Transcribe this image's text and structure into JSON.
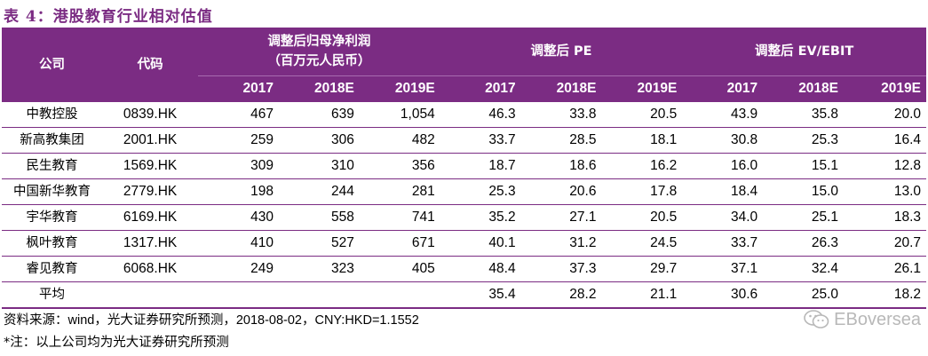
{
  "title": "表 4：港股教育行业相对估值",
  "header": {
    "company": "公司",
    "code": "代码",
    "group1_line1": "调整后归母净利润",
    "group1_line2": "（百万元人民币）",
    "group2": "调整后 PE",
    "group3": "调整后 EV/EBIT",
    "years": [
      "2017",
      "2018E",
      "2019E",
      "2017",
      "2018E",
      "2019E",
      "2017",
      "2018E",
      "2019E"
    ]
  },
  "rows": [
    {
      "name": "中教控股",
      "code": "0839.HK",
      "v": [
        "467",
        "639",
        "1,054",
        "46.3",
        "33.8",
        "20.5",
        "43.9",
        "35.8",
        "20.0"
      ]
    },
    {
      "name": "新高教集团",
      "code": "2001.HK",
      "v": [
        "259",
        "306",
        "482",
        "33.7",
        "28.5",
        "18.1",
        "30.8",
        "25.3",
        "16.4"
      ]
    },
    {
      "name": "民生教育",
      "code": "1569.HK",
      "v": [
        "309",
        "310",
        "356",
        "18.7",
        "18.6",
        "16.2",
        "16.0",
        "15.1",
        "12.8"
      ]
    },
    {
      "name": "中国新华教育",
      "code": "2779.HK",
      "v": [
        "198",
        "244",
        "281",
        "25.3",
        "20.6",
        "17.8",
        "18.4",
        "15.0",
        "13.0"
      ]
    },
    {
      "name": "宇华教育",
      "code": "6169.HK",
      "v": [
        "430",
        "558",
        "741",
        "35.2",
        "27.1",
        "20.5",
        "34.0",
        "25.1",
        "18.3"
      ]
    },
    {
      "name": "枫叶教育",
      "code": "1317.HK",
      "v": [
        "410",
        "527",
        "671",
        "40.1",
        "31.2",
        "24.5",
        "33.7",
        "26.3",
        "20.7"
      ]
    },
    {
      "name": "睿见教育",
      "code": "6068.HK",
      "v": [
        "249",
        "323",
        "405",
        "48.4",
        "37.3",
        "29.7",
        "37.1",
        "32.4",
        "26.1"
      ]
    },
    {
      "name": "平均",
      "code": "",
      "v": [
        "",
        "",
        "",
        "35.4",
        "28.2",
        "21.1",
        "30.6",
        "25.0",
        "18.2"
      ]
    }
  ],
  "notes": {
    "source": "资料来源：wind，光大证券研究所预测，2018-08-02，CNY:HKD=1.1552",
    "footnote": "*注：以上公司均为光大证券研究所预测"
  },
  "watermark": {
    "text": "EBoversea",
    "icon": "wechat-icon"
  },
  "colors": {
    "header_bg": "#7b2c83",
    "title": "#7b2c83",
    "rule": "#7b2c83"
  }
}
